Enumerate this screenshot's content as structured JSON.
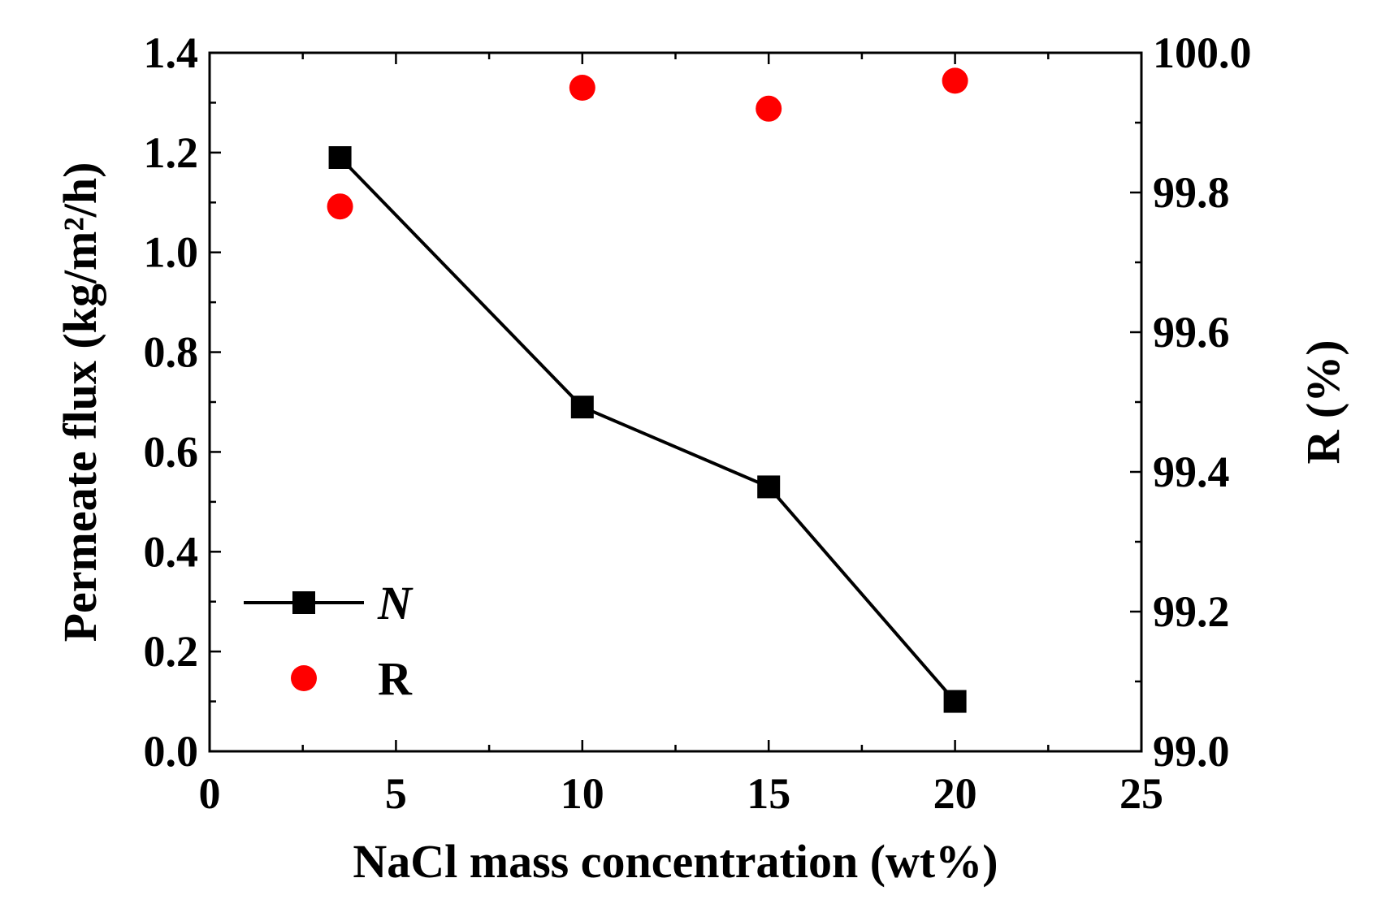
{
  "chart_data": {
    "type": "line",
    "title": "",
    "xlabel": "NaCl mass concentration (wt%)",
    "ylabel_left": "Permeate flux (kg/m²/h)",
    "ylabel_right": "R (%)",
    "xlim": [
      0,
      25
    ],
    "ylim_left": [
      0.0,
      1.4
    ],
    "ylim_right": [
      99.0,
      100.0
    ],
    "x_ticks": [
      0,
      5,
      10,
      15,
      20,
      25
    ],
    "x_tick_labels": [
      "0",
      "5",
      "10",
      "15",
      "20",
      "25"
    ],
    "y_left_ticks": [
      0.0,
      0.2,
      0.4,
      0.6,
      0.8,
      1.0,
      1.2,
      1.4
    ],
    "y_left_tick_labels": [
      "0.0",
      "0.2",
      "0.4",
      "0.6",
      "0.8",
      "1.0",
      "1.2",
      "1.4"
    ],
    "y_right_ticks": [
      99.0,
      99.2,
      99.4,
      99.6,
      99.8,
      100.0
    ],
    "y_right_tick_labels": [
      "99.0",
      "99.2",
      "99.4",
      "99.6",
      "99.8",
      "100.0"
    ],
    "series": [
      {
        "name": "N",
        "axis": "left",
        "style": "line-square",
        "color": "#000000",
        "x": [
          3.5,
          10,
          15,
          20
        ],
        "values": [
          1.19,
          0.69,
          0.53,
          0.1
        ]
      },
      {
        "name": "R",
        "axis": "right",
        "style": "scatter-circle",
        "color": "#ff0000",
        "x": [
          3.5,
          10,
          15,
          20
        ],
        "values": [
          99.78,
          99.95,
          99.92,
          99.96
        ]
      }
    ],
    "legend": {
      "position": "bottom-left",
      "entries": [
        "N",
        "R"
      ]
    },
    "grid": false
  }
}
